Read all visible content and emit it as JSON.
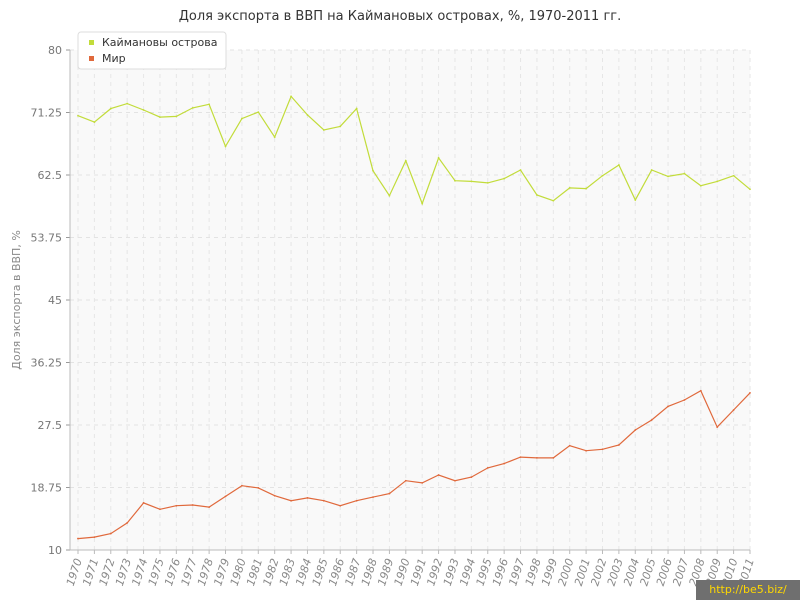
{
  "watermark": "http://be5.biz/",
  "chart_data": {
    "type": "line",
    "title": "Доля экспорта в ВВП на Каймановых островах, %, 1970-2011 гг.",
    "xlabel": "",
    "ylabel": "Доля экспорта в ВВП, %",
    "ylim": [
      10,
      80
    ],
    "yticks": [
      "10",
      "18.75",
      "27.5",
      "36.25",
      "45",
      "53.75",
      "62.5",
      "71.25",
      "80"
    ],
    "grid": true,
    "legend_position": "top-left",
    "x": [
      "1970",
      "1971",
      "1972",
      "1973",
      "1974",
      "1975",
      "1976",
      "1977",
      "1978",
      "1979",
      "1980",
      "1981",
      "1982",
      "1983",
      "1984",
      "1985",
      "1986",
      "1987",
      "1988",
      "1989",
      "1990",
      "1991",
      "1992",
      "1993",
      "1994",
      "1995",
      "1996",
      "1997",
      "1998",
      "1999",
      "2000",
      "2001",
      "2002",
      "2003",
      "2004",
      "2005",
      "2006",
      "2007",
      "2008",
      "2009",
      "2010",
      "2011"
    ],
    "series": [
      {
        "name": "Каймановы острова",
        "color": "#c2dc3a",
        "values": [
          70.8,
          69.9,
          71.8,
          72.5,
          71.6,
          70.6,
          70.7,
          71.9,
          72.4,
          66.5,
          70.4,
          71.3,
          67.8,
          73.5,
          70.9,
          68.8,
          69.3,
          71.8,
          63.1,
          59.6,
          64.5,
          58.5,
          64.9,
          61.7,
          61.6,
          61.4,
          62.0,
          63.2,
          59.7,
          58.9,
          60.7,
          60.6,
          62.4,
          63.9,
          59.0,
          63.2,
          62.3,
          62.7,
          61.0,
          61.6,
          62.4,
          60.5
        ]
      },
      {
        "name": "Мир",
        "color": "#e0693c",
        "values": [
          11.6,
          11.8,
          12.3,
          13.8,
          16.6,
          15.7,
          16.2,
          16.3,
          16.0,
          17.5,
          19.0,
          18.7,
          17.6,
          16.9,
          17.3,
          16.9,
          16.2,
          16.9,
          17.4,
          17.9,
          19.7,
          19.4,
          20.5,
          19.7,
          20.2,
          21.5,
          22.1,
          23.0,
          22.9,
          22.9,
          24.6,
          23.9,
          24.1,
          24.7,
          26.8,
          28.2,
          30.1,
          31.0,
          32.3,
          27.2,
          29.6,
          32.0
        ]
      }
    ]
  }
}
